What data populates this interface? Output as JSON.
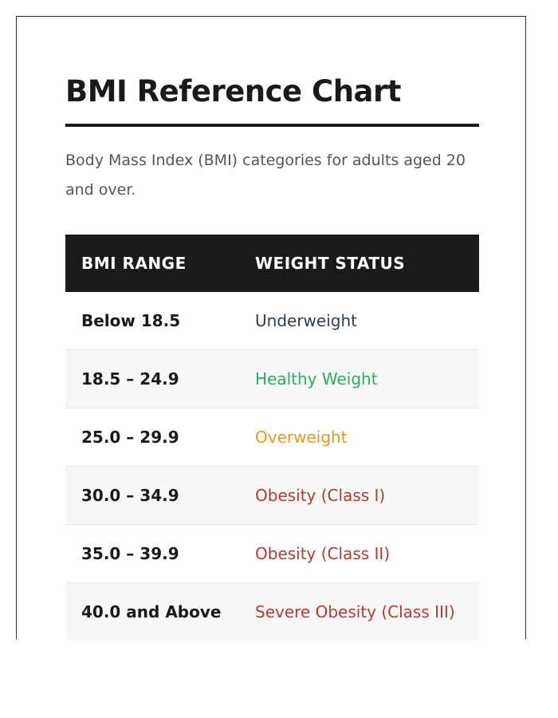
{
  "title": "BMI Reference Chart",
  "description": "Body Mass Index (BMI) categories for adults aged 20 and over.",
  "table": {
    "headers": {
      "range": "BMI RANGE",
      "status": "WEIGHT STATUS"
    },
    "rows": [
      {
        "range": "Below 18.5",
        "status": "Underweight"
      },
      {
        "range": "18.5 – 24.9",
        "status": "Healthy Weight"
      },
      {
        "range": "25.0 – 29.9",
        "status": "Overweight"
      },
      {
        "range": "30.0 – 34.9",
        "status": "Obesity (Class I)"
      },
      {
        "range": "35.0 – 39.9",
        "status": "Obesity (Class II)"
      },
      {
        "range": "40.0 and Above",
        "status": "Severe Obesity (Class III)"
      }
    ]
  },
  "colors": {
    "heading": "#1a1a1a",
    "text": "#555555",
    "header_bg": "#1a1a1a",
    "underweight": "#2c3e50",
    "healthy": "#27ae60",
    "overweight": "#e89a1c",
    "obesity": "#b33a2e"
  }
}
